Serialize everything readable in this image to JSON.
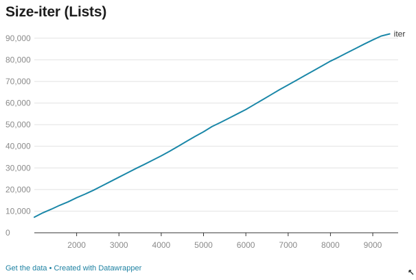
{
  "chart_data": {
    "type": "line",
    "title": "Size-iter (Lists)",
    "xlabel": "",
    "ylabel": "",
    "xlim": [
      1000,
      9600
    ],
    "ylim": [
      0,
      95000
    ],
    "x_ticks": [
      2000,
      3000,
      4000,
      5000,
      6000,
      7000,
      8000,
      9000
    ],
    "x_tick_labels": [
      "2000",
      "3000",
      "4000",
      "5000",
      "6000",
      "7000",
      "8000",
      "9000"
    ],
    "y_ticks": [
      0,
      10000,
      20000,
      30000,
      40000,
      50000,
      60000,
      70000,
      80000,
      90000
    ],
    "y_tick_labels": [
      "0",
      "10,000",
      "20,000",
      "30,000",
      "40,000",
      "50,000",
      "60,000",
      "70,000",
      "80,000",
      "90,000"
    ],
    "grid": true,
    "legend": "inline-end",
    "series": [
      {
        "name": "iter",
        "color": "#1a87a8",
        "x": [
          1000,
          1200,
          1400,
          1600,
          1800,
          2000,
          2200,
          2400,
          2600,
          2800,
          3000,
          3200,
          3400,
          3600,
          3800,
          4000,
          4200,
          4400,
          4600,
          4800,
          5000,
          5200,
          5400,
          5600,
          5800,
          6000,
          6200,
          6400,
          6600,
          6800,
          7000,
          7200,
          7400,
          7600,
          7800,
          8000,
          8200,
          8400,
          8600,
          8800,
          9000,
          9200,
          9400
        ],
        "y": [
          7200,
          9200,
          10900,
          12700,
          14300,
          16200,
          17900,
          19700,
          21700,
          23700,
          25700,
          27700,
          29700,
          31600,
          33600,
          35600,
          37700,
          40000,
          42300,
          44600,
          46700,
          49100,
          51000,
          53000,
          55000,
          57000,
          59300,
          61600,
          63900,
          66200,
          68400,
          70600,
          72800,
          75000,
          77200,
          79400,
          81300,
          83300,
          85300,
          87300,
          89200,
          91000,
          92000
        ]
      }
    ]
  },
  "footer": {
    "get_data_label": "Get the data",
    "separator": " • ",
    "created_with_label": "Created with Datawrapper"
  },
  "icons": {
    "corner": "resize-arrow-icon"
  }
}
